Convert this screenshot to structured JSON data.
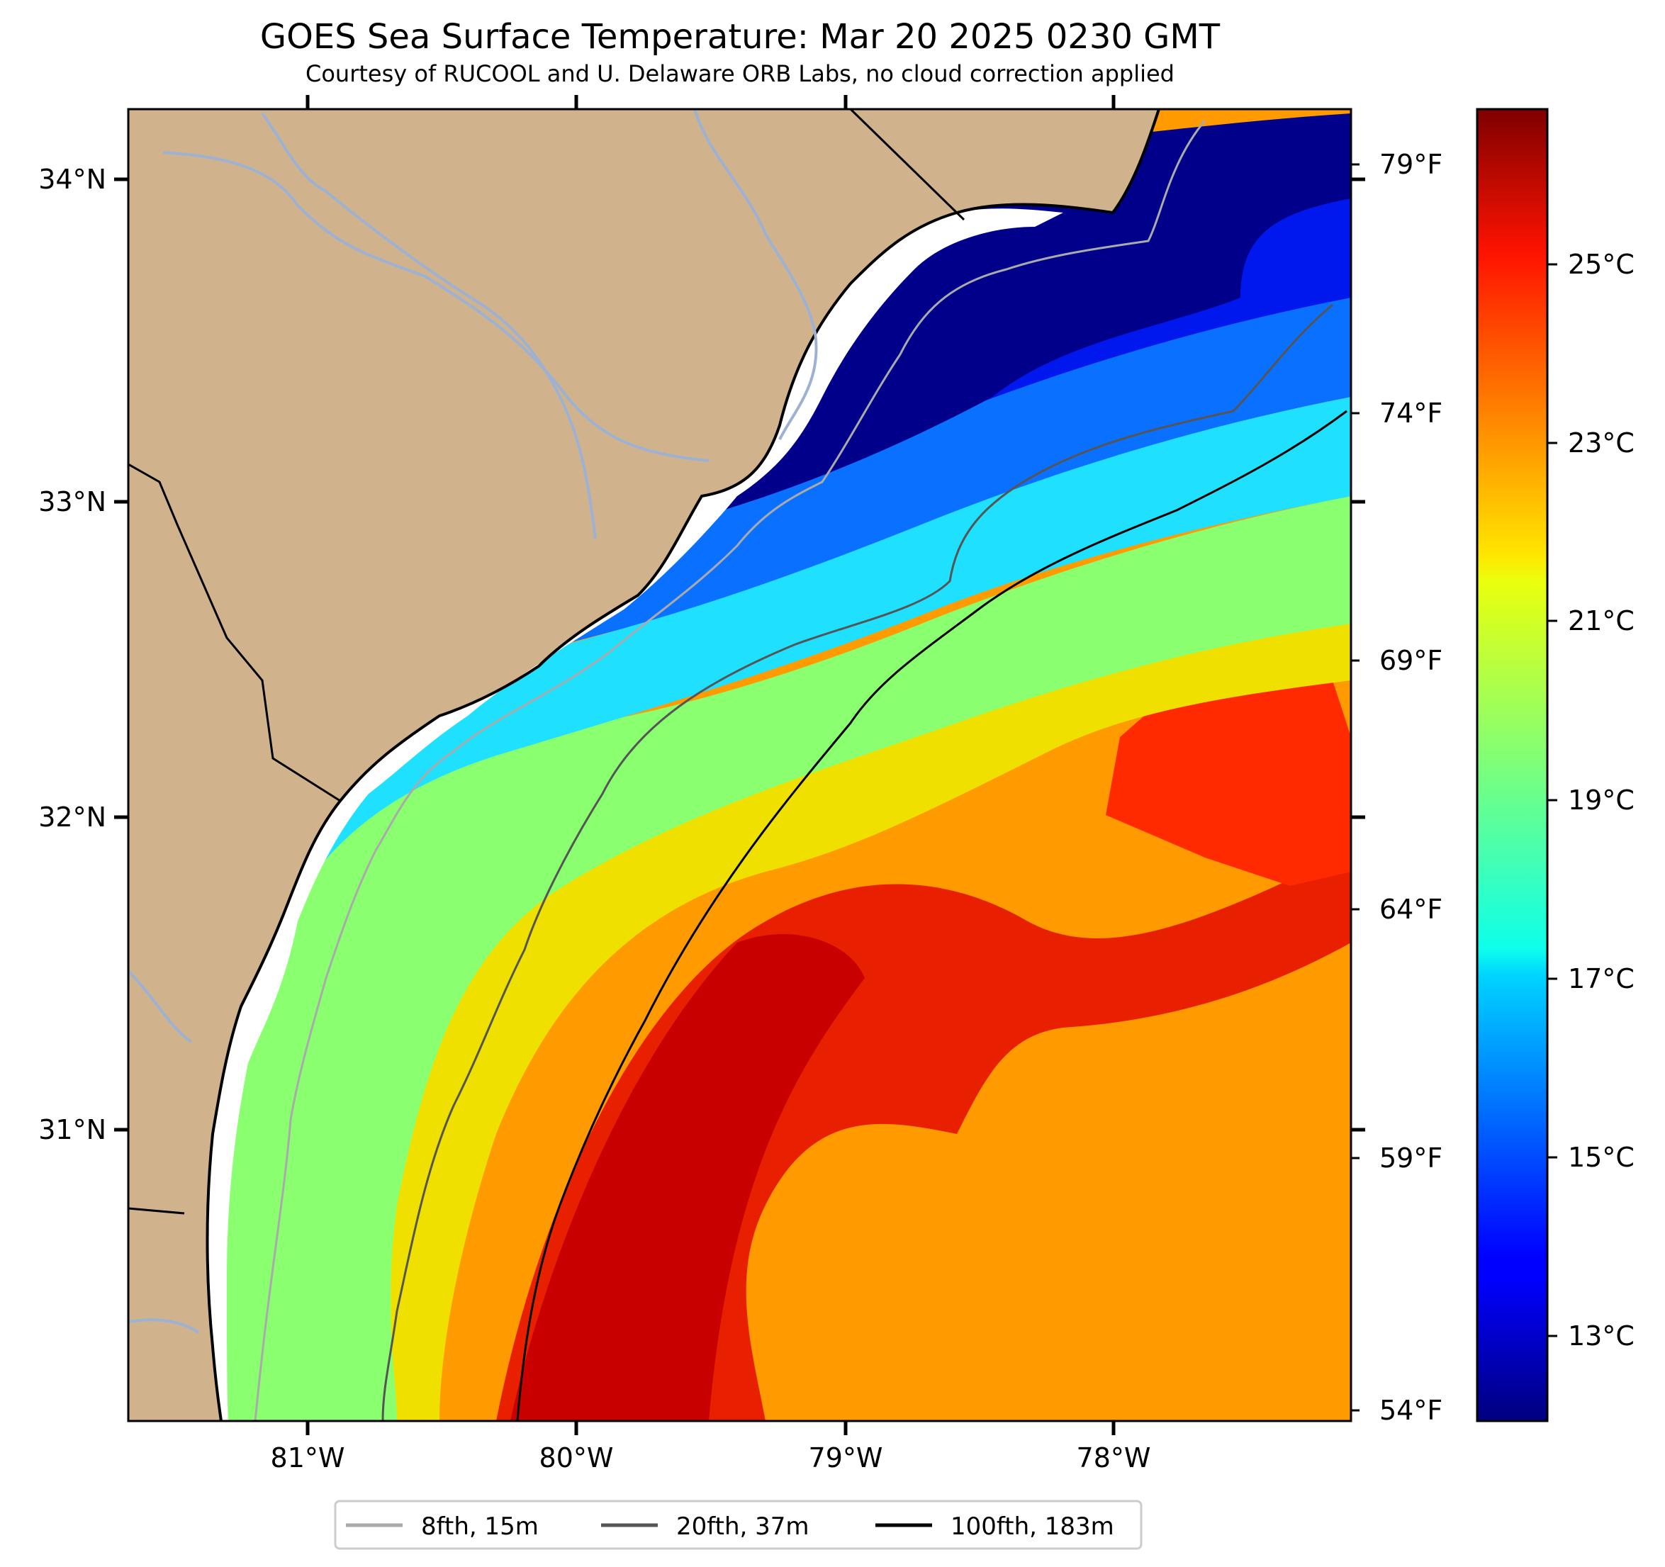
{
  "title": "GOES Sea Surface Temperature: Mar 20 2025 0230 GMT",
  "subtitle": "Courtesy of RUCOOL and U. Delaware ORB Labs, no cloud correction applied",
  "map": {
    "lat_labels": [
      "34°N",
      "33°N",
      "32°N",
      "31°N"
    ],
    "lon_labels": [
      "81°W",
      "80°W",
      "79°W",
      "78°W"
    ],
    "fahrenheit_labels": [
      "79°F",
      "74°F",
      "69°F",
      "64°F",
      "59°F",
      "54°F"
    ],
    "land_color": "#d0b28c",
    "coast_color": "#000000",
    "river_color": "#9db2d3"
  },
  "colorbar": {
    "labels": [
      "25°C",
      "23°C",
      "21°C",
      "19°C",
      "17°C",
      "15°C",
      "13°C"
    ],
    "colormap": "jet"
  },
  "legend": [
    {
      "label": "8fth, 15m",
      "color": "#aaaaaa"
    },
    {
      "label": "20fth, 37m",
      "color": "#555555"
    },
    {
      "label": "100fth, 183m",
      "color": "#000000"
    }
  ]
}
